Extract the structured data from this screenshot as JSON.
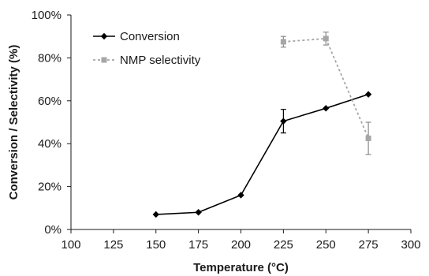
{
  "chart_data": {
    "type": "line",
    "xlabel": "Temperature (°C)",
    "ylabel": "Conversion / Selectivity (%)",
    "xlim": [
      100,
      300
    ],
    "ylim": [
      0,
      100
    ],
    "x_ticks": [
      100,
      125,
      150,
      175,
      200,
      225,
      250,
      275,
      300
    ],
    "y_ticks": [
      0,
      20,
      40,
      60,
      80,
      100
    ],
    "x_tick_labels": [
      "100",
      "125",
      "150",
      "175",
      "200",
      "225",
      "250",
      "275",
      "300"
    ],
    "y_tick_labels": [
      "0%",
      "20%",
      "40%",
      "60%",
      "80%",
      "100%"
    ],
    "grid": false,
    "legend_position": "top-left",
    "series": [
      {
        "name": "Conversion",
        "color": "#000000",
        "line_style": "solid",
        "marker": "diamond",
        "x": [
          150,
          175,
          200,
          225,
          250,
          275
        ],
        "y": [
          7,
          8,
          16,
          50.5,
          56.5,
          63
        ],
        "error": [
          null,
          null,
          null,
          5.5,
          null,
          null
        ]
      },
      {
        "name": "NMP selectivity",
        "color": "#a6a6a6",
        "line_style": "dotted",
        "marker": "square",
        "x": [
          225,
          250,
          275
        ],
        "y": [
          87.5,
          89,
          42.5
        ],
        "error": [
          2.5,
          3,
          7.5
        ]
      }
    ]
  }
}
